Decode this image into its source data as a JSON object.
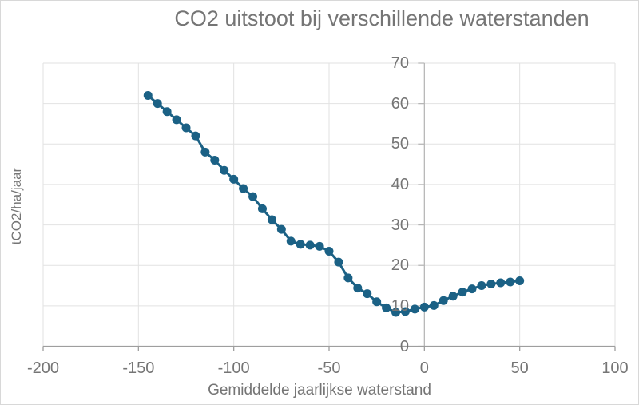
{
  "title": "CO2 uitstoot bij verschillende waterstanden",
  "chart_data": {
    "type": "scatter",
    "title": "CO2 uitstoot bij verschillende waterstanden",
    "xlabel": "Gemiddelde jaarlijkse waterstand",
    "ylabel": "tCO2/ha/jaar",
    "xlim": [
      -200,
      100
    ],
    "ylim": [
      0,
      70
    ],
    "x_ticks": [
      "-200",
      "-150",
      "-100",
      "-50",
      "0",
      "50",
      "100"
    ],
    "y_ticks": [
      "0",
      "10",
      "20",
      "30",
      "40",
      "50",
      "60",
      "70"
    ],
    "grid": true,
    "legend": false,
    "marker_radius": 5.5,
    "line_width": 3,
    "series": [
      {
        "name": "tCO2/ha/jaar",
        "color": "#1b6185",
        "marker": "circle",
        "line": true,
        "points": [
          [
            -145,
            62
          ],
          [
            -140,
            60
          ],
          [
            -135,
            58
          ],
          [
            -130,
            56
          ],
          [
            -125,
            54
          ],
          [
            -120,
            52
          ],
          [
            -115,
            48
          ],
          [
            -110,
            46
          ],
          [
            -105,
            43.5
          ],
          [
            -100,
            41.3
          ],
          [
            -95,
            39
          ],
          [
            -90,
            37
          ],
          [
            -85,
            34
          ],
          [
            -80,
            31.3
          ],
          [
            -75,
            28.9
          ],
          [
            -70,
            26
          ],
          [
            -65,
            25.2
          ],
          [
            -60,
            25
          ],
          [
            -55,
            24.7
          ],
          [
            -50,
            23.5
          ],
          [
            -45,
            20.8
          ],
          [
            -40,
            16.9
          ],
          [
            -35,
            14.4
          ],
          [
            -30,
            13
          ],
          [
            -25,
            11
          ],
          [
            -20,
            9.5
          ],
          [
            -15,
            8.4
          ],
          [
            -10,
            8.6
          ],
          [
            -5,
            9.2
          ],
          [
            0,
            9.7
          ],
          [
            5,
            10.1
          ],
          [
            10,
            11.3
          ],
          [
            15,
            12.4
          ],
          [
            20,
            13.4
          ],
          [
            25,
            14.2
          ],
          [
            30,
            15
          ],
          [
            35,
            15.4
          ],
          [
            40,
            15.7
          ],
          [
            45,
            15.9
          ],
          [
            50,
            16.2
          ]
        ]
      }
    ]
  },
  "colors": {
    "series": "#1b6185",
    "grid": "#e2e2e2",
    "x_axis": "#9e9e9e",
    "value_axis": "#b5b5b5",
    "text": "#757575",
    "background": "#ffffff",
    "border": "#d8d8d8"
  }
}
